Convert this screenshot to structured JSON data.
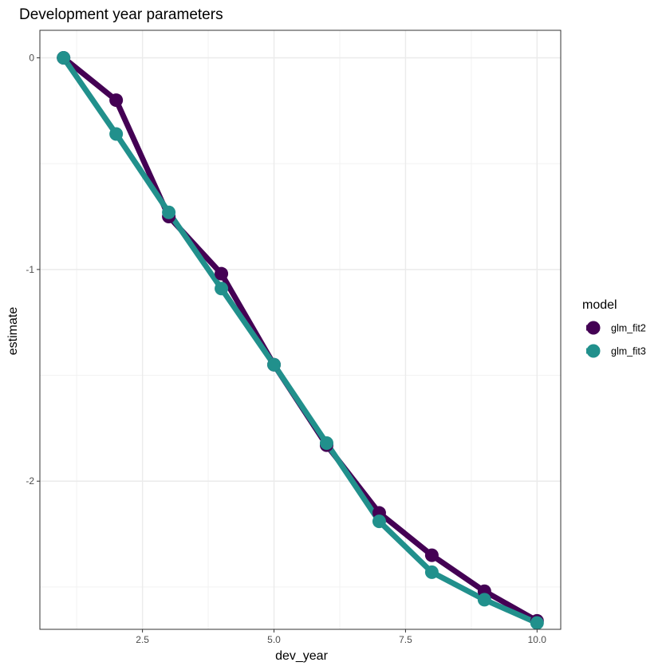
{
  "chart_data": {
    "type": "line",
    "title": "Development year parameters",
    "xlabel": "dev_year",
    "ylabel": "estimate",
    "xlim": [
      0.55,
      10.45
    ],
    "ylim": [
      -2.7,
      0.13
    ],
    "x_ticks": [
      2.5,
      5.0,
      7.5,
      10.0
    ],
    "x_tick_labels": [
      "2.5",
      "5.0",
      "7.5",
      "10.0"
    ],
    "x_minor_ticks": [
      1.25,
      3.75,
      6.25,
      8.75
    ],
    "y_ticks": [
      0,
      -1,
      -2
    ],
    "y_tick_labels": [
      "0",
      "-1",
      "-2"
    ],
    "y_minor_ticks": [
      -0.5,
      -1.5,
      -2.5
    ],
    "grid": true,
    "legend": {
      "title": "model",
      "position": "right"
    },
    "x": [
      1,
      2,
      3,
      4,
      5,
      6,
      7,
      8,
      9,
      10
    ],
    "series": [
      {
        "name": "glm_fit2",
        "color": "#440154",
        "values": [
          0,
          -0.2,
          -0.75,
          -1.02,
          -1.45,
          -1.83,
          -2.15,
          -2.35,
          -2.52,
          -2.66
        ]
      },
      {
        "name": "glm_fit3",
        "color": "#21908C",
        "values": [
          0,
          -0.36,
          -0.73,
          -1.09,
          -1.45,
          -1.82,
          -2.19,
          -2.43,
          -2.56,
          -2.67
        ]
      }
    ]
  }
}
